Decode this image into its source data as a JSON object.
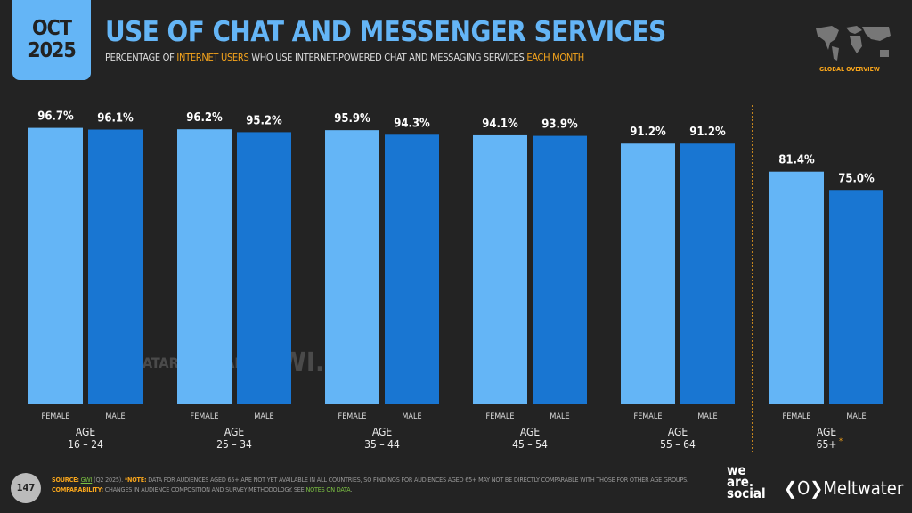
{
  "header": {
    "date_month": "OCT",
    "date_year": "2025",
    "title": "USE OF CHAT AND MESSENGER SERVICES",
    "subtitle_parts": [
      "PERCENTAGE OF ",
      "INTERNET USERS",
      " WHO USE INTERNET-POWERED CHAT AND MESSAGING SERVICES ",
      "EACH MONTH"
    ],
    "badge": "GLOBAL OVERVIEW",
    "map_icon": "world-map-icon"
  },
  "watermark": {
    "left": "DATAREPORTAL",
    "right": "GWI."
  },
  "chart_data": {
    "type": "bar",
    "title": "USE OF CHAT AND MESSENGER SERVICES",
    "group_label": "AGE",
    "categories": [
      "16 – 24",
      "25 – 34",
      "35 – 44",
      "45 – 54",
      "55 – 64",
      "65+"
    ],
    "category_notes": [
      "",
      "",
      "",
      "",
      "",
      "*"
    ],
    "series": [
      {
        "name": "FEMALE",
        "color": "#64b5f6",
        "values": [
          96.7,
          96.2,
          95.9,
          94.1,
          91.2,
          81.4
        ],
        "labels": [
          "96.7%",
          "96.2%",
          "95.9%",
          "94.1%",
          "91.2%",
          "81.4%"
        ]
      },
      {
        "name": "MALE",
        "color": "#1976d2",
        "values": [
          96.1,
          95.2,
          94.3,
          93.9,
          91.2,
          75.0
        ],
        "labels": [
          "96.1%",
          "95.2%",
          "94.3%",
          "93.9%",
          "91.2%",
          "75.0%"
        ]
      }
    ],
    "ylim": [
      0,
      100
    ],
    "grid": false,
    "separator_color": "#f7a51c"
  },
  "footer": {
    "page_number": "147",
    "source_label": "SOURCE:",
    "source_link": "GWI",
    "source_rest": " (Q2 2025). ",
    "note_label": "*NOTE:",
    "note_text": " DATA FOR AUDIENCES AGED 65+ ARE NOT YET AVAILABLE IN ALL COUNTRIES, SO FINDINGS FOR AUDIENCES AGED 65+ MAY NOT BE DIRECTLY COMPARABLE WITH THOSE FOR OTHER AGE GROUPS. ",
    "comp_label": "COMPARABILITY:",
    "comp_text": " CHANGES IN AUDIENCE COMPOSITION AND SURVEY METHODOLOGY. SEE ",
    "notes_link": "NOTES ON DATA",
    "comp_end": ".",
    "logo_we_are_social": "we are. social",
    "logo_meltwater": "Meltwater"
  }
}
